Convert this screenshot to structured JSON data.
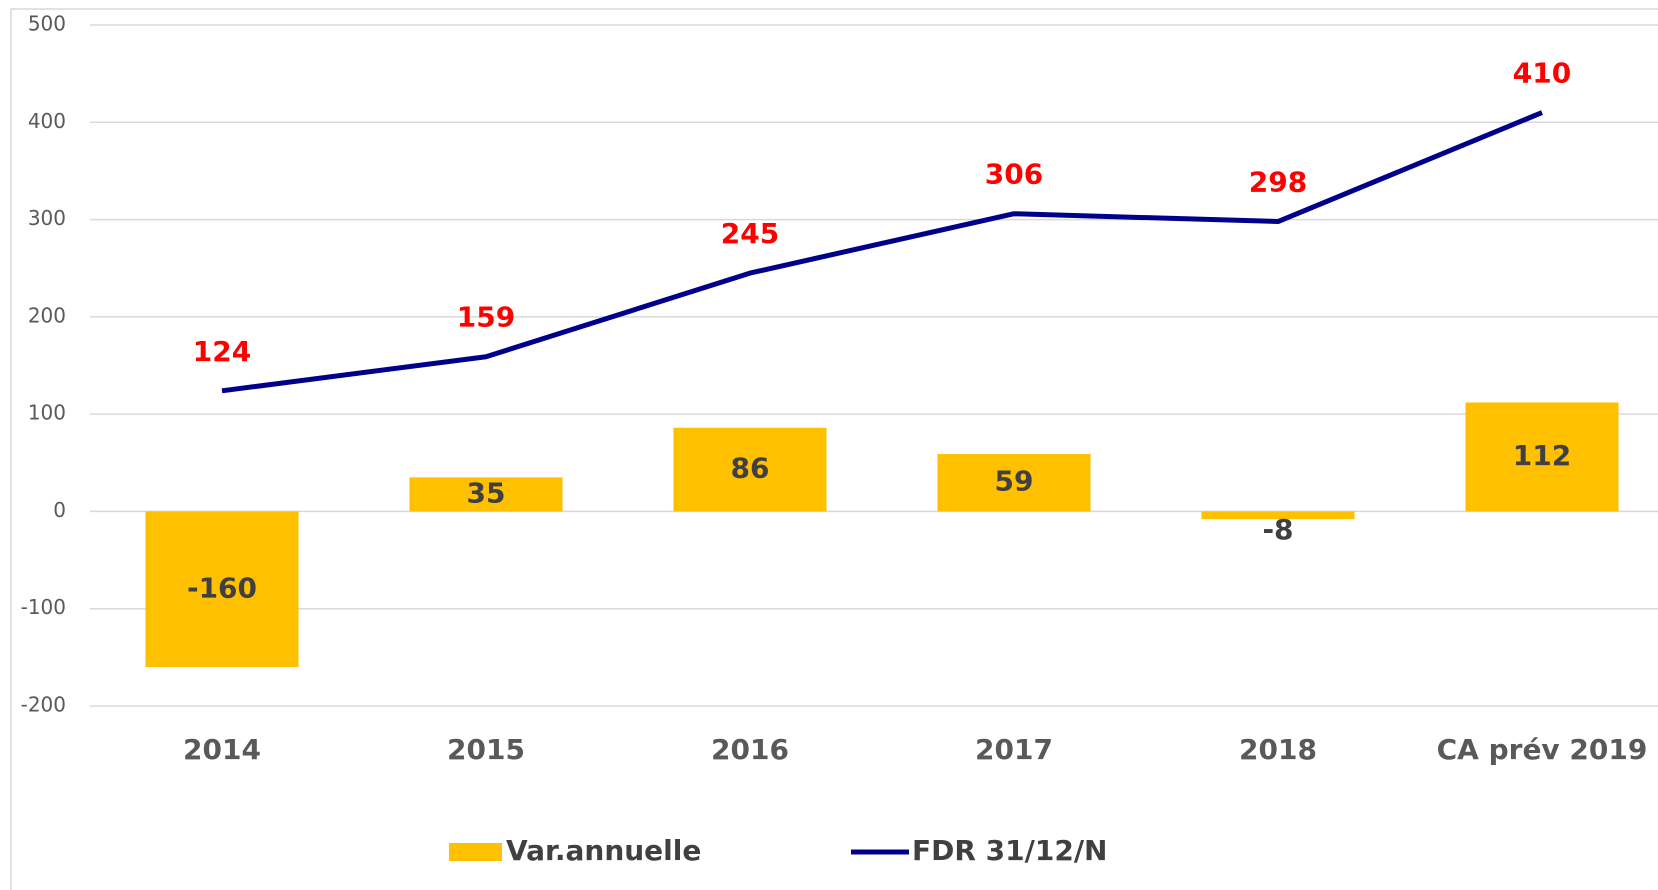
{
  "chart_data": {
    "type": "combo",
    "categories": [
      "2014",
      "2015",
      "2016",
      "2017",
      "2018",
      "CA prév 2019"
    ],
    "series": [
      {
        "name": "Var.annuelle",
        "type": "bar",
        "color": "#ffc000",
        "label_color": "#404040",
        "values": [
          -160,
          35,
          86,
          59,
          -8,
          112
        ]
      },
      {
        "name": "FDR 31/12/N",
        "type": "line",
        "color": "#00008b",
        "label_color": "#ff0000",
        "values": [
          124,
          159,
          245,
          306,
          298,
          410
        ]
      }
    ],
    "ylim": [
      -200,
      500
    ],
    "yticks": [
      -200,
      -100,
      0,
      100,
      200,
      300,
      400,
      500
    ],
    "grid": true,
    "legend": "bottom"
  }
}
